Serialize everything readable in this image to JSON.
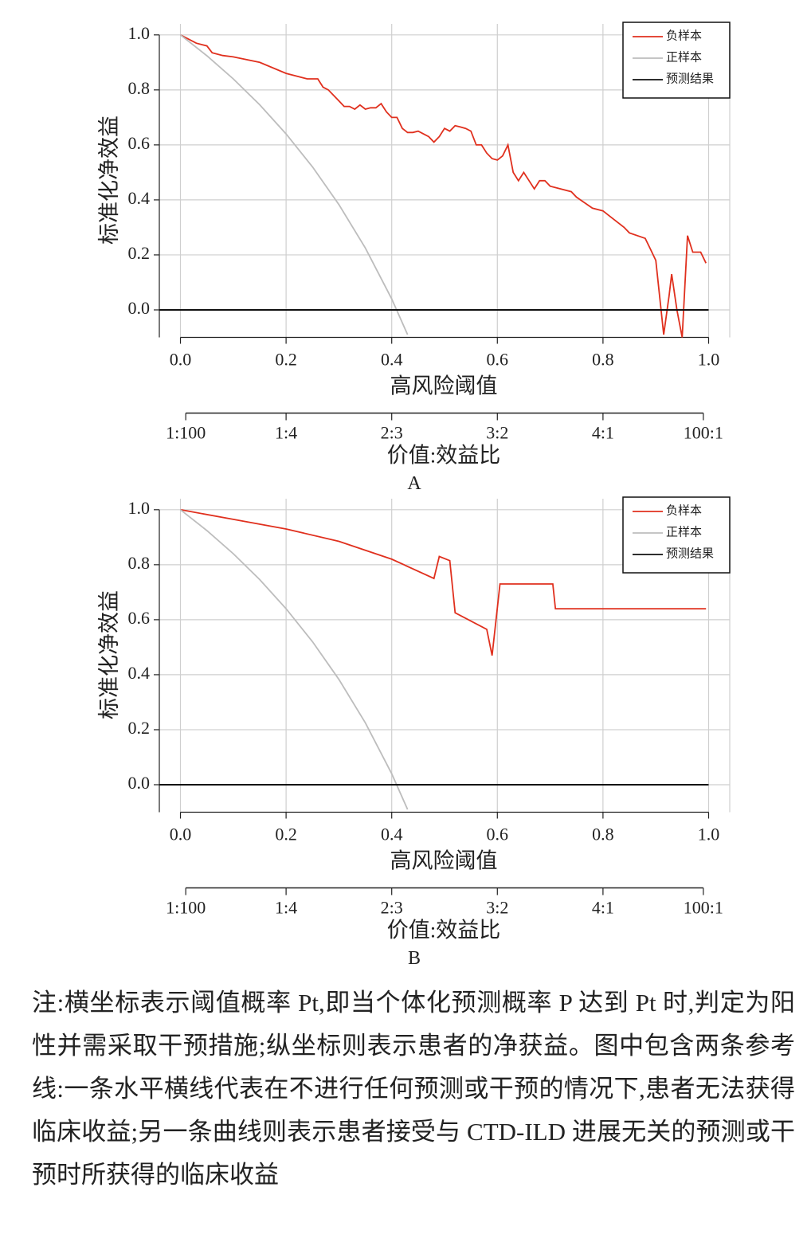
{
  "chart_data": [
    {
      "type": "line",
      "panel": "A",
      "xlabel": "高风险阈值",
      "ylabel": "标准化净效益",
      "x2label": "价值:效益比",
      "xlim": [
        -0.04,
        1.04
      ],
      "ylim": [
        -0.1,
        1.04
      ],
      "xticks": [
        {
          "value": 0,
          "label": "0.0"
        },
        0.2,
        0.4,
        0.6,
        0.8,
        {
          "value": 1,
          "label": "1.0"
        }
      ],
      "yticks": [
        {
          "value": 0,
          "label": "0.0"
        },
        0.2,
        0.4,
        0.6,
        0.8,
        {
          "value": 1,
          "label": "1.0"
        }
      ],
      "x2ticks": [
        {
          "value": 0.01,
          "label": "1:100"
        },
        {
          "value": 0.2,
          "label": "1:4"
        },
        {
          "value": 0.4,
          "label": "2:3"
        },
        {
          "value": 0.6,
          "label": "3:2"
        },
        {
          "value": 0.8,
          "label": "4:1"
        },
        {
          "value": 0.99,
          "label": "100:1"
        }
      ],
      "grid": true,
      "legend": "upper right",
      "series": [
        {
          "name": "负样本",
          "color": "#e0301e",
          "x": [
            0,
            0.03,
            0.05,
            0.06,
            0.08,
            0.1,
            0.15,
            0.2,
            0.24,
            0.26,
            0.27,
            0.28,
            0.29,
            0.3,
            0.31,
            0.32,
            0.33,
            0.34,
            0.35,
            0.36,
            0.37,
            0.38,
            0.39,
            0.4,
            0.41,
            0.42,
            0.43,
            0.44,
            0.45,
            0.46,
            0.47,
            0.48,
            0.49,
            0.5,
            0.51,
            0.52,
            0.53,
            0.54,
            0.55,
            0.56,
            0.57,
            0.58,
            0.59,
            0.6,
            0.61,
            0.62,
            0.63,
            0.64,
            0.65,
            0.66,
            0.67,
            0.68,
            0.69,
            0.7,
            0.74,
            0.75,
            0.78,
            0.8,
            0.82,
            0.84,
            0.85,
            0.88,
            0.89,
            0.9,
            0.915,
            0.925,
            0.93,
            0.94,
            0.95,
            0.96,
            0.97,
            0.985,
            0.995
          ],
          "values": [
            1.0,
            0.97,
            0.96,
            0.935,
            0.925,
            0.92,
            0.9,
            0.86,
            0.84,
            0.84,
            0.81,
            0.8,
            0.78,
            0.76,
            0.74,
            0.74,
            0.73,
            0.745,
            0.73,
            0.735,
            0.735,
            0.75,
            0.72,
            0.7,
            0.7,
            0.66,
            0.645,
            0.645,
            0.65,
            0.64,
            0.63,
            0.61,
            0.63,
            0.66,
            0.65,
            0.67,
            0.665,
            0.66,
            0.65,
            0.6,
            0.6,
            0.57,
            0.55,
            0.545,
            0.56,
            0.6,
            0.5,
            0.47,
            0.5,
            0.47,
            0.44,
            0.47,
            0.47,
            0.45,
            0.43,
            0.41,
            0.37,
            0.36,
            0.33,
            0.3,
            0.28,
            0.26,
            0.22,
            0.18,
            -0.09,
            0.05,
            0.13,
            0.0,
            -0.1,
            0.27,
            0.21,
            0.21,
            0.17
          ]
        },
        {
          "name": "正样本",
          "color": "#bdbdbd",
          "x": [
            0,
            0.05,
            0.1,
            0.15,
            0.2,
            0.25,
            0.3,
            0.35,
            0.4,
            0.43
          ],
          "values": [
            1.0,
            0.924,
            0.84,
            0.746,
            0.64,
            0.52,
            0.383,
            0.225,
            0.04,
            -0.09
          ]
        },
        {
          "name": "预测结果",
          "color": "#111111",
          "x": [
            -0.04,
            1.0
          ],
          "values": [
            0,
            0
          ]
        }
      ]
    },
    {
      "type": "line",
      "panel": "B",
      "xlabel": "高风险阈值",
      "ylabel": "标准化净效益",
      "x2label": "价值:效益比",
      "xlim": [
        -0.04,
        1.04
      ],
      "ylim": [
        -0.1,
        1.04
      ],
      "xticks": [
        {
          "value": 0,
          "label": "0.0"
        },
        0.2,
        0.4,
        0.6,
        0.8,
        {
          "value": 1,
          "label": "1.0"
        }
      ],
      "yticks": [
        {
          "value": 0,
          "label": "0.0"
        },
        0.2,
        0.4,
        0.6,
        0.8,
        {
          "value": 1,
          "label": "1.0"
        }
      ],
      "x2ticks": [
        {
          "value": 0.01,
          "label": "1:100"
        },
        {
          "value": 0.2,
          "label": "1:4"
        },
        {
          "value": 0.4,
          "label": "2:3"
        },
        {
          "value": 0.6,
          "label": "3:2"
        },
        {
          "value": 0.8,
          "label": "4:1"
        },
        {
          "value": 0.99,
          "label": "100:1"
        }
      ],
      "grid": true,
      "legend": "upper right",
      "series": [
        {
          "name": "负样本",
          "color": "#e0301e",
          "x": [
            0,
            0.1,
            0.2,
            0.3,
            0.4,
            0.48,
            0.49,
            0.51,
            0.52,
            0.58,
            0.59,
            0.605,
            0.705,
            0.71,
            0.995
          ],
          "values": [
            1.0,
            0.965,
            0.93,
            0.885,
            0.82,
            0.75,
            0.83,
            0.815,
            0.625,
            0.565,
            0.47,
            0.73,
            0.73,
            0.64,
            0.64
          ]
        },
        {
          "name": "正样本",
          "color": "#bdbdbd",
          "x": [
            0,
            0.05,
            0.1,
            0.15,
            0.2,
            0.25,
            0.3,
            0.35,
            0.4,
            0.43
          ],
          "values": [
            1.0,
            0.924,
            0.84,
            0.746,
            0.64,
            0.52,
            0.383,
            0.225,
            0.04,
            -0.09
          ]
        },
        {
          "name": "预测结果",
          "color": "#111111",
          "x": [
            -0.04,
            1.0
          ],
          "values": [
            0,
            0
          ]
        }
      ]
    }
  ],
  "note": "注:横坐标表示阈值概率 Pt,即当个体化预测概率 P 达到 Pt 时,判定为阳性并需采取干预措施;纵坐标则表示患者的净获益。图中包含两条参考线:一条水平横线代表在不进行任何预测或干预的情况下,患者无法获得临床收益;另一条曲线则表示患者接受与 CTD-ILD 进展无关的预测或干预时所获得的临床收益"
}
